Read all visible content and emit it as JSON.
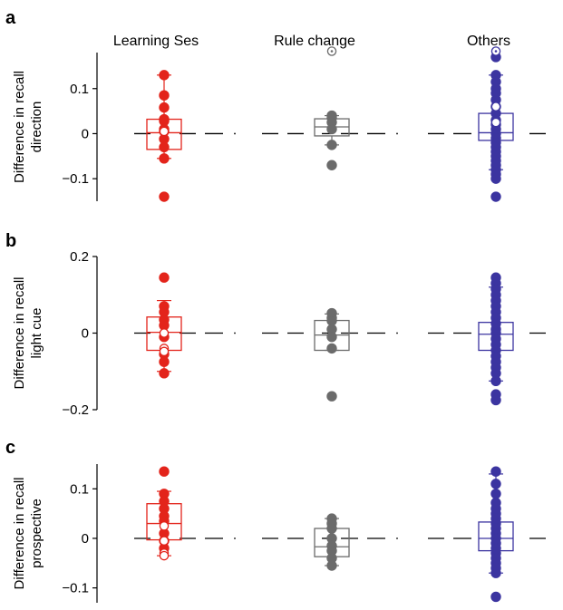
{
  "figure": {
    "column_headers": [
      "Learning Ses",
      "Rule change",
      "Others"
    ],
    "colors": {
      "Learning Ses": "#e3241b",
      "Rule change": "#6b6b6b",
      "Others": "#3b34a0"
    }
  },
  "chart_data": [
    {
      "type": "box",
      "panel_label": "a",
      "ylabel": [
        "Difference in recall",
        "direction"
      ],
      "ylim": [
        -0.15,
        0.18
      ],
      "yticks": [
        0.1,
        0,
        -0.1
      ],
      "ytick_labels": [
        "0.1",
        "0",
        "−0.1"
      ],
      "reference_line": 0,
      "groups": [
        {
          "name": "Learning Ses",
          "color": "#e3241b",
          "box": {
            "q1": -0.035,
            "median": 0.002,
            "q3": 0.032,
            "whisker_low": -0.055,
            "whisker_high": 0.13
          },
          "points": [
            0.13,
            0.085,
            0.058,
            0.032,
            0.028,
            0.01,
            0.005,
            -0.012,
            -0.03,
            -0.055,
            -0.14
          ],
          "open_points": [
            0.005
          ]
        },
        {
          "name": "Rule change",
          "color": "#6b6b6b",
          "box": {
            "q1": -0.005,
            "median": 0.015,
            "q3": 0.033,
            "whisker_low": -0.025,
            "whisker_high": 0.04
          },
          "points": [
            0.04,
            0.035,
            0.025,
            0.01,
            -0.025,
            -0.07
          ],
          "open_points": [
            0.183
          ]
        },
        {
          "name": "Others",
          "color": "#3b34a0",
          "box": {
            "q1": -0.015,
            "median": 0.002,
            "q3": 0.045,
            "whisker_low": -0.08,
            "whisker_high": 0.13
          },
          "points": [
            0.17,
            0.13,
            0.115,
            0.1,
            0.09,
            0.075,
            0.06,
            0.045,
            0.03,
            0.02,
            0.01,
            0.0,
            -0.01,
            -0.02,
            -0.03,
            -0.04,
            -0.05,
            -0.06,
            -0.07,
            -0.08,
            -0.09,
            -0.1,
            -0.14
          ],
          "open_points": [
            0.183,
            0.06,
            0.025
          ]
        }
      ]
    },
    {
      "type": "box",
      "panel_label": "b",
      "ylabel": [
        "Difference in recall",
        "light cue"
      ],
      "ylim": [
        -0.2,
        0.2
      ],
      "yticks": [
        0.2,
        0,
        -0.2
      ],
      "ytick_labels": [
        "0.2",
        "0",
        "−0.2"
      ],
      "reference_line": 0,
      "groups": [
        {
          "name": "Learning Ses",
          "color": "#e3241b",
          "box": {
            "q1": -0.045,
            "median": 0.002,
            "q3": 0.042,
            "whisker_low": -0.1,
            "whisker_high": 0.085
          },
          "points": [
            0.145,
            0.07,
            0.055,
            0.035,
            0.02,
            -0.01,
            -0.055,
            -0.075,
            -0.105
          ],
          "open_points": [
            0.0,
            -0.04,
            -0.048
          ]
        },
        {
          "name": "Rule change",
          "color": "#6b6b6b",
          "box": {
            "q1": -0.045,
            "median": -0.005,
            "q3": 0.033,
            "whisker_low": -0.045,
            "whisker_high": 0.05
          },
          "points": [
            0.052,
            0.04,
            0.032,
            0.01,
            -0.01,
            -0.04,
            -0.165
          ],
          "open_points": []
        },
        {
          "name": "Others",
          "color": "#3b34a0",
          "box": {
            "q1": -0.045,
            "median": -0.003,
            "q3": 0.028,
            "whisker_low": -0.125,
            "whisker_high": 0.12
          },
          "points": [
            0.145,
            0.13,
            0.115,
            0.1,
            0.085,
            0.07,
            0.055,
            0.04,
            0.025,
            0.01,
            0.0,
            -0.015,
            -0.03,
            -0.045,
            -0.06,
            -0.075,
            -0.09,
            -0.105,
            -0.125,
            -0.16,
            -0.175
          ],
          "open_points": []
        }
      ]
    },
    {
      "type": "box",
      "panel_label": "c",
      "ylabel": [
        "Difference in recall",
        "prospective"
      ],
      "ylim": [
        -0.13,
        0.15
      ],
      "yticks": [
        0.1,
        0,
        -0.1
      ],
      "ytick_labels": [
        "0.1",
        "0",
        "−0.1"
      ],
      "reference_line": 0,
      "groups": [
        {
          "name": "Learning Ses",
          "color": "#e3241b",
          "box": {
            "q1": -0.003,
            "median": 0.03,
            "q3": 0.07,
            "whisker_low": -0.035,
            "whisker_high": 0.095
          },
          "points": [
            0.135,
            0.09,
            0.075,
            0.06,
            0.045,
            0.035,
            0.01,
            -0.005,
            -0.02
          ],
          "open_points": [
            0.025,
            -0.005,
            -0.03,
            -0.035
          ]
        },
        {
          "name": "Rule change",
          "color": "#6b6b6b",
          "box": {
            "q1": -0.037,
            "median": -0.017,
            "q3": 0.02,
            "whisker_low": -0.055,
            "whisker_high": 0.04
          },
          "points": [
            0.04,
            0.03,
            0.02,
            0.0,
            -0.015,
            -0.025,
            -0.04,
            -0.055
          ],
          "open_points": []
        },
        {
          "name": "Others",
          "color": "#3b34a0",
          "box": {
            "q1": -0.025,
            "median": 0.0,
            "q3": 0.033,
            "whisker_low": -0.07,
            "whisker_high": 0.13
          },
          "points": [
            0.135,
            0.11,
            0.09,
            0.072,
            0.06,
            0.05,
            0.04,
            0.03,
            0.02,
            0.01,
            0.0,
            -0.01,
            -0.02,
            -0.03,
            -0.04,
            -0.05,
            -0.06,
            -0.07,
            -0.118
          ],
          "open_points": []
        }
      ]
    }
  ]
}
